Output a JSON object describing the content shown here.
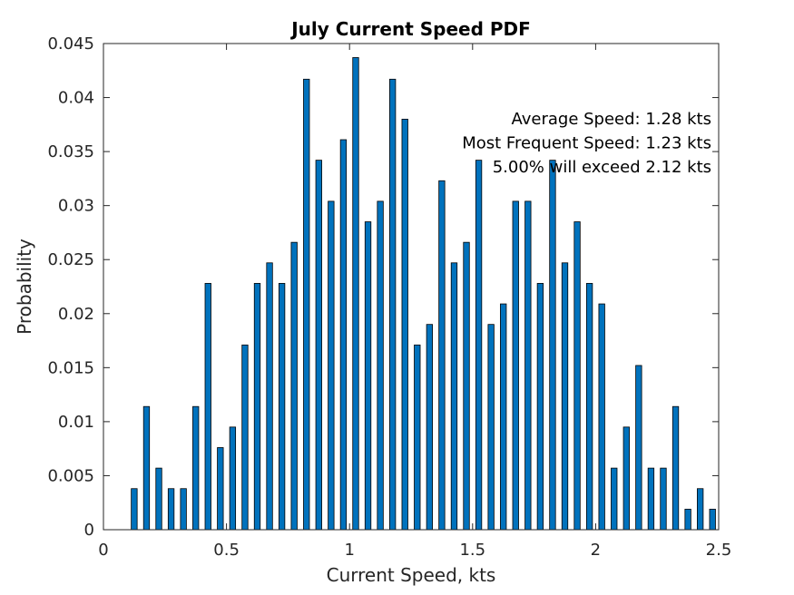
{
  "chart_data": {
    "type": "bar",
    "title": "July Current Speed PDF",
    "xlabel": "Current Speed, kts",
    "ylabel": "Probability",
    "xlim": [
      0,
      2.5
    ],
    "ylim": [
      0,
      0.045
    ],
    "xticks": [
      "0",
      "0.5",
      "1",
      "1.5",
      "2",
      "2.5"
    ],
    "yticks": [
      "0",
      "0.005",
      "0.01",
      "0.015",
      "0.02",
      "0.025",
      "0.03",
      "0.035",
      "0.04",
      "0.045"
    ],
    "grid": false,
    "bar_color": "#0072BD",
    "x": [
      0.125,
      0.175,
      0.225,
      0.275,
      0.325,
      0.375,
      0.425,
      0.475,
      0.525,
      0.575,
      0.625,
      0.675,
      0.725,
      0.775,
      0.825,
      0.875,
      0.925,
      0.975,
      1.025,
      1.075,
      1.125,
      1.175,
      1.225,
      1.275,
      1.325,
      1.375,
      1.425,
      1.475,
      1.525,
      1.575,
      1.625,
      1.675,
      1.725,
      1.775,
      1.825,
      1.875,
      1.925,
      1.975,
      2.025,
      2.075,
      2.125,
      2.175,
      2.225,
      2.275,
      2.325,
      2.375,
      2.425,
      2.475
    ],
    "values": [
      0.0038,
      0.0114,
      0.0057,
      0.0038,
      0.0038,
      0.0114,
      0.0228,
      0.0076,
      0.0095,
      0.0171,
      0.0228,
      0.0247,
      0.0228,
      0.0266,
      0.0417,
      0.0342,
      0.0304,
      0.0361,
      0.0437,
      0.0285,
      0.0304,
      0.0417,
      0.038,
      0.0171,
      0.019,
      0.0323,
      0.0247,
      0.0266,
      0.0342,
      0.019,
      0.0209,
      0.0304,
      0.0304,
      0.0228,
      0.0342,
      0.0247,
      0.0285,
      0.0228,
      0.0209,
      0.0057,
      0.0095,
      0.0152,
      0.0057,
      0.0057,
      0.0114,
      0.0019,
      0.0038,
      0.0019
    ],
    "annotations": [
      "Average Speed: 1.28 kts",
      "Most Frequent Speed: 1.23 kts",
      "5.00% will exceed 2.12 kts"
    ]
  }
}
